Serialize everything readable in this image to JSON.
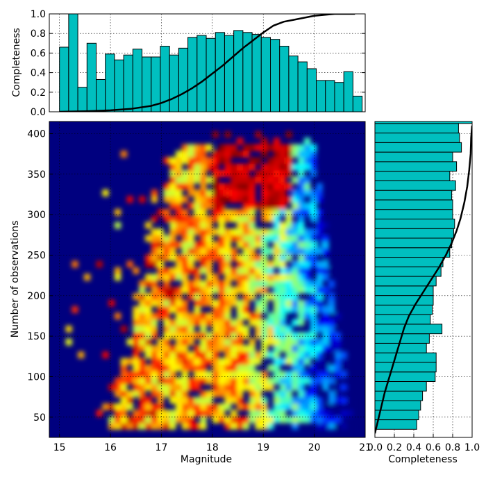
{
  "chart_data": [
    {
      "panel": "top",
      "type": "bar",
      "ylabel": "Completeness",
      "xlim": [
        14.8,
        21.0
      ],
      "ylim": [
        0,
        1.0
      ],
      "yticks": [
        "0.0",
        "0.2",
        "0.4",
        "0.6",
        "0.8",
        "1.0"
      ],
      "grid": true,
      "bin_start": 15.0,
      "bin_width": 0.18,
      "values": [
        0.66,
        1.0,
        0.25,
        0.7,
        0.33,
        0.59,
        0.53,
        0.58,
        0.64,
        0.56,
        0.56,
        0.67,
        0.58,
        0.65,
        0.76,
        0.78,
        0.75,
        0.81,
        0.78,
        0.83,
        0.81,
        0.79,
        0.76,
        0.74,
        0.67,
        0.57,
        0.51,
        0.44,
        0.32,
        0.32,
        0.3,
        0.41,
        0.16
      ],
      "curve": {
        "x": [
          15.0,
          15.5,
          16.0,
          16.4,
          16.8,
          17.0,
          17.2,
          17.4,
          17.6,
          17.8,
          18.0,
          18.2,
          18.4,
          18.6,
          18.8,
          19.0,
          19.2,
          19.4,
          19.6,
          19.8,
          20.0,
          20.2,
          20.4,
          20.6,
          20.8
        ],
        "y": [
          0.0,
          0.005,
          0.015,
          0.03,
          0.06,
          0.09,
          0.13,
          0.18,
          0.24,
          0.31,
          0.39,
          0.47,
          0.56,
          0.65,
          0.73,
          0.81,
          0.88,
          0.92,
          0.94,
          0.96,
          0.98,
          0.99,
          1.0,
          1.0,
          1.0
        ]
      }
    },
    {
      "panel": "main",
      "type": "heatmap",
      "xlabel": "Magnitude",
      "ylabel": "Number of observations",
      "xlim": [
        14.8,
        21.0
      ],
      "ylim": [
        25,
        415
      ],
      "xticks": [
        "15",
        "16",
        "17",
        "18",
        "19",
        "20",
        "21"
      ],
      "yticks": [
        "50",
        "100",
        "150",
        "200",
        "250",
        "300",
        "350",
        "400"
      ],
      "grid": true,
      "colormap": "jet",
      "background": "#00007f"
    },
    {
      "panel": "right",
      "type": "bar",
      "orientation": "horizontal",
      "xlabel": "Completeness",
      "xlim": [
        0,
        1.0
      ],
      "ylim": [
        25,
        415
      ],
      "xticks": [
        "0.0",
        "0.2",
        "0.4",
        "0.6",
        "0.8",
        "1.0"
      ],
      "grid": true,
      "bin_start": 35,
      "bin_width": 11.8,
      "values": [
        0.43,
        0.45,
        0.47,
        0.49,
        0.53,
        0.62,
        0.63,
        0.63,
        0.53,
        0.56,
        0.69,
        0.57,
        0.59,
        0.6,
        0.6,
        0.63,
        0.68,
        0.7,
        0.77,
        0.79,
        0.81,
        0.82,
        0.8,
        0.8,
        0.79,
        0.83,
        0.77,
        0.84,
        0.8,
        0.89,
        0.87,
        0.86,
        1.0
      ],
      "curve": {
        "x": [
          0.0,
          0.05,
          0.1,
          0.15,
          0.2,
          0.25,
          0.3,
          0.35,
          0.42,
          0.5,
          0.58,
          0.66,
          0.73,
          0.79,
          0.84,
          0.88,
          0.92,
          0.95,
          0.97,
          0.985,
          0.99,
          1.0
        ],
        "y": [
          30,
          55,
          80,
          100,
          120,
          140,
          160,
          175,
          190,
          205,
          220,
          235,
          250,
          265,
          280,
          295,
          315,
          335,
          355,
          375,
          395,
          410
        ]
      }
    }
  ]
}
